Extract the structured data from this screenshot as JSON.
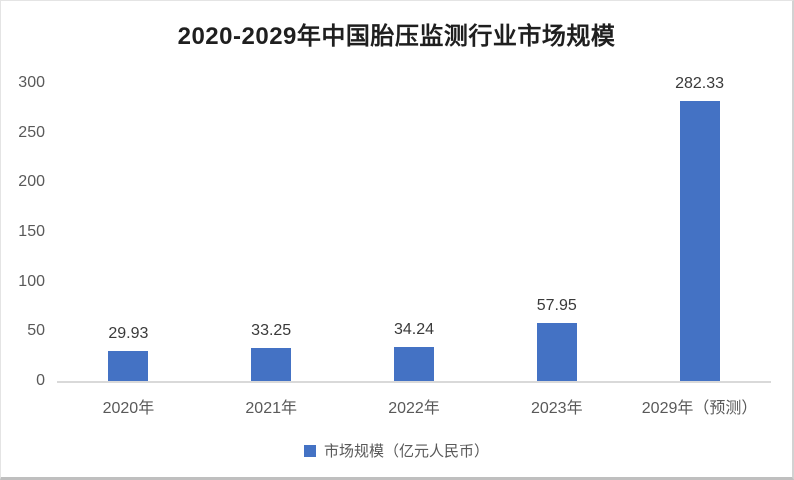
{
  "chart_data": {
    "type": "bar",
    "title": "2020-2029年中国胎压监测行业市场规模",
    "categories": [
      "2020年",
      "2021年",
      "2022年",
      "2023年",
      "2029年（预测）"
    ],
    "values": [
      29.93,
      33.25,
      34.24,
      57.95,
      282.33
    ],
    "value_labels": [
      "29.93",
      "33.25",
      "34.24",
      "57.95",
      "282.33"
    ],
    "series_name": "市场规模（亿元人民币）",
    "ylim": [
      0,
      300
    ],
    "yticks": [
      0,
      50,
      100,
      150,
      200,
      250,
      300
    ],
    "grid": false,
    "legend_position": "bottom",
    "bar_color": "#4472C4",
    "axis_line_color": "#d9d9d9"
  }
}
